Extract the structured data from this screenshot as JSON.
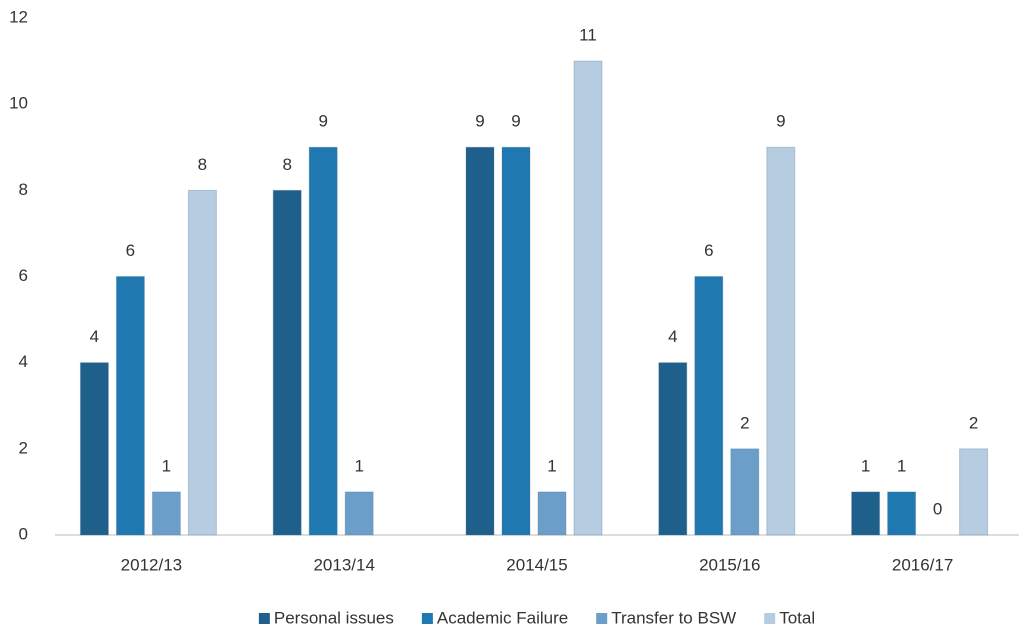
{
  "chart_data": {
    "type": "bar",
    "categories": [
      "2012/13",
      "2013/14",
      "2014/15",
      "2015/16",
      "2016/17"
    ],
    "series": [
      {
        "name": "Personal issues",
        "color": "#1f5f8b",
        "values": [
          4,
          8,
          9,
          4,
          1
        ]
      },
      {
        "name": "Academic Failure",
        "color": "#1f78b0",
        "values": [
          6,
          9,
          9,
          6,
          1
        ]
      },
      {
        "name": "Transfer to BSW",
        "color": "#6b9fc9",
        "values": [
          1,
          1,
          1,
          2,
          0
        ]
      },
      {
        "name": "Total",
        "color": "#b5cce1",
        "values": [
          8,
          null,
          11,
          9,
          2
        ]
      }
    ],
    "ylim": [
      0,
      12
    ],
    "yticks": [
      0,
      2,
      4,
      6,
      8,
      10,
      12
    ],
    "grid": false,
    "legend": "bottom"
  }
}
